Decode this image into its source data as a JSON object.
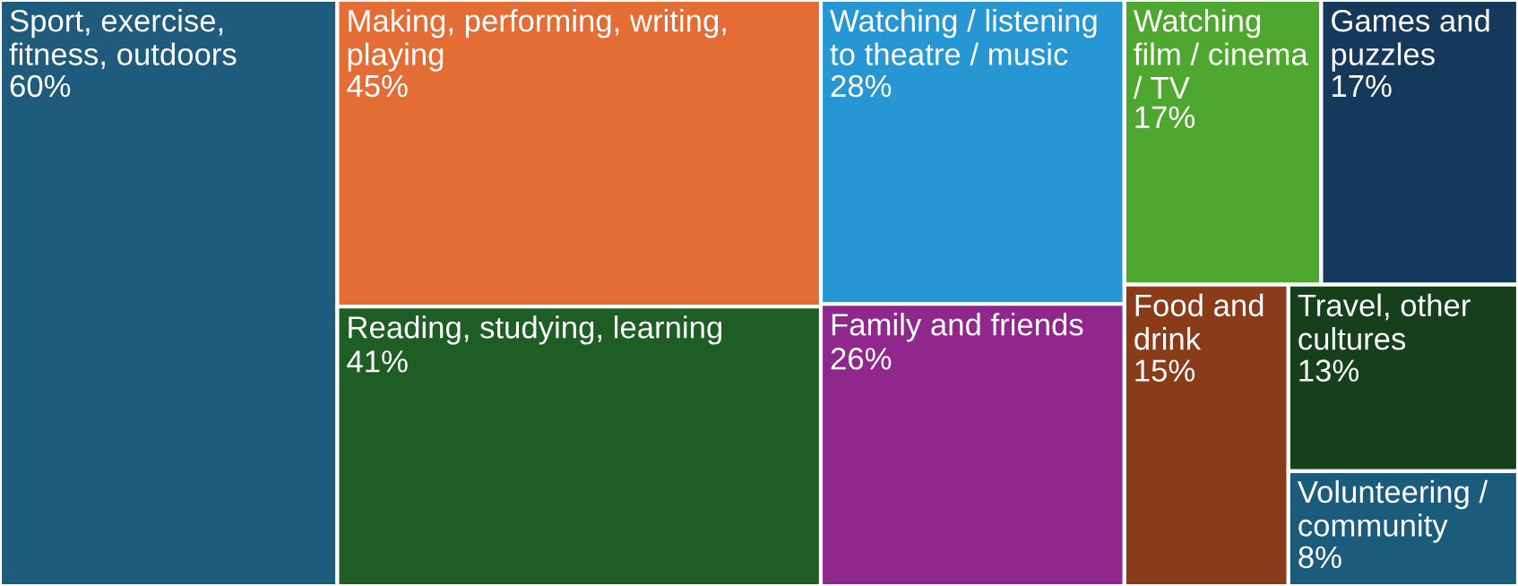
{
  "chart_data": {
    "type": "other",
    "categories": [
      "Sport, exercise, fitness, outdoors",
      "Making, performing, writing, playing",
      "Reading, studying, learning",
      "Watching / listening to theatre / music",
      "Family and friends",
      "Watching film / cinema / TV",
      "Games and puzzles",
      "Food and drink",
      "Travel, other cultures",
      "Volunteering / community"
    ],
    "values": [
      60,
      45,
      41,
      28,
      26,
      17,
      17,
      15,
      13,
      8
    ],
    "value_labels": [
      "60%",
      "45%",
      "41%",
      "28%",
      "26%",
      "17%",
      "17%",
      "15%",
      "13%",
      "8%"
    ],
    "colors": [
      "#1f5b7c",
      "#e46c35",
      "#1e5e25",
      "#2697d2",
      "#90278c",
      "#4ea72f",
      "#14395a",
      "#8a3b1a",
      "#15401b",
      "#1b5b7b"
    ]
  }
}
